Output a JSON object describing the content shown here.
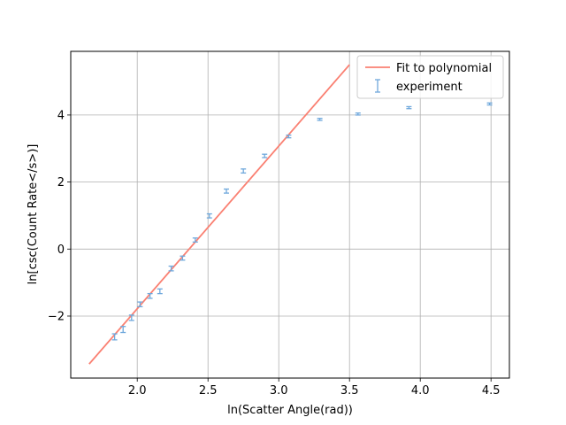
{
  "chart_data": {
    "type": "scatter",
    "xlabel": "ln(Scatter Angle(rad))",
    "ylabel": "ln[csc(Count Rate</s>)]",
    "xlim": [
      1.53,
      4.63
    ],
    "ylim": [
      -3.85,
      5.9
    ],
    "xticks": [
      2.0,
      2.5,
      3.0,
      3.5,
      4.0,
      4.5
    ],
    "xtick_labels": [
      "2.0",
      "2.5",
      "3.0",
      "3.5",
      "4.0",
      "4.5"
    ],
    "yticks": [
      -2,
      0,
      2,
      4
    ],
    "ytick_labels": [
      "−2",
      "0",
      "2",
      "4"
    ],
    "grid": true,
    "legend_position": "top-right",
    "colors": {
      "fit": "#fa8072",
      "experiment": "#6fa8dc"
    },
    "series": [
      {
        "name": "Fit to polynomial",
        "kind": "line",
        "x": [
          1.66,
          3.5
        ],
        "y": [
          -3.43,
          5.5
        ]
      },
      {
        "name": "experiment",
        "kind": "errorbar",
        "x": [
          1.84,
          1.9,
          1.96,
          2.02,
          2.09,
          2.16,
          2.24,
          2.32,
          2.41,
          2.51,
          2.63,
          2.75,
          2.9,
          3.07,
          3.29,
          3.56,
          3.92,
          4.49
        ],
        "y": [
          -2.62,
          -2.4,
          -2.05,
          -1.65,
          -1.4,
          -1.26,
          -0.58,
          -0.27,
          0.27,
          0.99,
          1.73,
          2.33,
          2.78,
          3.36,
          3.87,
          4.03,
          4.22,
          4.33
        ],
        "err": [
          0.09,
          0.09,
          0.08,
          0.07,
          0.07,
          0.07,
          0.07,
          0.06,
          0.06,
          0.06,
          0.06,
          0.06,
          0.05,
          0.04,
          0.03,
          0.03,
          0.03,
          0.03
        ]
      }
    ]
  }
}
